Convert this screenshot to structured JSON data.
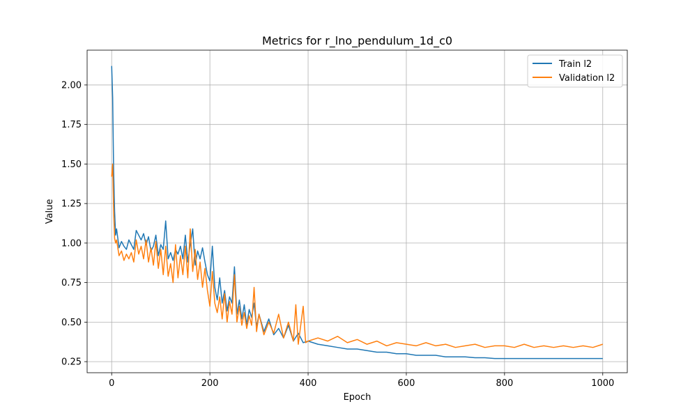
{
  "chart_data": {
    "type": "line",
    "title": "Metrics for r_lno_pendulum_1d_c0",
    "xlabel": "Epoch",
    "ylabel": "Value",
    "xlim": [
      -50,
      1050
    ],
    "ylim": [
      0.18,
      2.22
    ],
    "xticks": [
      0,
      200,
      400,
      600,
      800,
      1000
    ],
    "xtick_labels": [
      "0",
      "200",
      "400",
      "600",
      "800",
      "1000"
    ],
    "yticks": [
      0.25,
      0.5,
      0.75,
      1.0,
      1.25,
      1.5,
      1.75,
      2.0
    ],
    "ytick_labels": [
      "0.25",
      "0.50",
      "0.75",
      "1.00",
      "1.25",
      "1.50",
      "1.75",
      "2.00"
    ],
    "grid": true,
    "legend_position": "top-right",
    "series": [
      {
        "name": "Train l2",
        "color": "#1f77b4",
        "x": [
          0,
          2,
          4,
          6,
          8,
          10,
          15,
          20,
          25,
          30,
          35,
          40,
          45,
          50,
          55,
          60,
          65,
          70,
          75,
          80,
          85,
          90,
          95,
          100,
          105,
          110,
          115,
          120,
          125,
          130,
          135,
          140,
          145,
          150,
          155,
          160,
          165,
          170,
          175,
          180,
          185,
          190,
          195,
          200,
          205,
          210,
          215,
          220,
          225,
          230,
          235,
          240,
          245,
          250,
          255,
          260,
          265,
          270,
          275,
          280,
          285,
          290,
          295,
          300,
          310,
          320,
          330,
          340,
          350,
          360,
          370,
          380,
          390,
          400,
          420,
          440,
          460,
          480,
          500,
          520,
          540,
          560,
          580,
          600,
          620,
          640,
          660,
          680,
          700,
          720,
          740,
          760,
          780,
          800,
          850,
          900,
          950,
          1000
        ],
        "y": [
          2.12,
          1.92,
          1.45,
          1.2,
          1.05,
          1.09,
          0.97,
          1.01,
          0.98,
          0.96,
          1.02,
          0.99,
          0.96,
          1.08,
          1.05,
          1.02,
          1.06,
          0.99,
          1.04,
          0.95,
          0.98,
          1.05,
          0.92,
          0.99,
          0.96,
          1.14,
          0.9,
          0.94,
          0.89,
          0.96,
          0.93,
          0.98,
          0.9,
          1.05,
          0.88,
          0.99,
          1.09,
          0.86,
          0.95,
          0.9,
          0.97,
          0.88,
          0.8,
          0.76,
          0.98,
          0.72,
          0.64,
          0.78,
          0.62,
          0.7,
          0.57,
          0.66,
          0.62,
          0.85,
          0.55,
          0.64,
          0.52,
          0.61,
          0.48,
          0.58,
          0.53,
          0.62,
          0.47,
          0.55,
          0.44,
          0.52,
          0.42,
          0.46,
          0.4,
          0.48,
          0.38,
          0.43,
          0.37,
          0.38,
          0.36,
          0.35,
          0.34,
          0.33,
          0.33,
          0.32,
          0.31,
          0.31,
          0.3,
          0.3,
          0.29,
          0.29,
          0.29,
          0.28,
          0.28,
          0.28,
          0.275,
          0.275,
          0.27,
          0.27,
          0.27,
          0.27,
          0.27,
          0.27
        ]
      },
      {
        "name": "Validation l2",
        "color": "#ff7f0e",
        "x": [
          0,
          2,
          4,
          6,
          8,
          10,
          15,
          20,
          25,
          30,
          35,
          40,
          45,
          50,
          55,
          60,
          65,
          70,
          75,
          80,
          85,
          90,
          95,
          100,
          105,
          110,
          115,
          120,
          125,
          130,
          135,
          140,
          145,
          150,
          155,
          160,
          165,
          170,
          175,
          180,
          185,
          190,
          195,
          200,
          205,
          210,
          215,
          220,
          225,
          230,
          235,
          240,
          245,
          250,
          255,
          260,
          265,
          270,
          275,
          280,
          285,
          290,
          295,
          300,
          310,
          320,
          330,
          340,
          350,
          360,
          370,
          375,
          380,
          390,
          395,
          400,
          420,
          440,
          460,
          480,
          500,
          520,
          540,
          560,
          580,
          600,
          620,
          640,
          660,
          680,
          700,
          720,
          740,
          760,
          780,
          800,
          820,
          840,
          860,
          880,
          900,
          920,
          940,
          960,
          980,
          1000
        ],
        "y": [
          1.42,
          1.5,
          1.2,
          1.03,
          1.0,
          1.02,
          0.92,
          0.95,
          0.89,
          0.93,
          0.9,
          0.94,
          0.88,
          1.02,
          0.93,
          0.98,
          0.9,
          1.02,
          0.88,
          0.97,
          0.86,
          1.01,
          0.84,
          0.96,
          0.8,
          0.98,
          0.79,
          0.87,
          0.75,
          0.99,
          0.78,
          0.92,
          0.8,
          0.98,
          0.78,
          1.09,
          0.82,
          0.96,
          0.77,
          0.88,
          0.72,
          0.84,
          0.7,
          0.6,
          0.82,
          0.62,
          0.56,
          0.66,
          0.52,
          0.68,
          0.5,
          0.63,
          0.55,
          0.8,
          0.5,
          0.6,
          0.48,
          0.56,
          0.46,
          0.54,
          0.48,
          0.72,
          0.44,
          0.55,
          0.42,
          0.5,
          0.43,
          0.55,
          0.4,
          0.5,
          0.38,
          0.61,
          0.36,
          0.6,
          0.37,
          0.38,
          0.4,
          0.38,
          0.41,
          0.37,
          0.39,
          0.36,
          0.38,
          0.35,
          0.37,
          0.36,
          0.35,
          0.37,
          0.35,
          0.36,
          0.34,
          0.35,
          0.36,
          0.34,
          0.35,
          0.35,
          0.34,
          0.36,
          0.34,
          0.35,
          0.34,
          0.35,
          0.34,
          0.35,
          0.34,
          0.36
        ]
      }
    ]
  }
}
